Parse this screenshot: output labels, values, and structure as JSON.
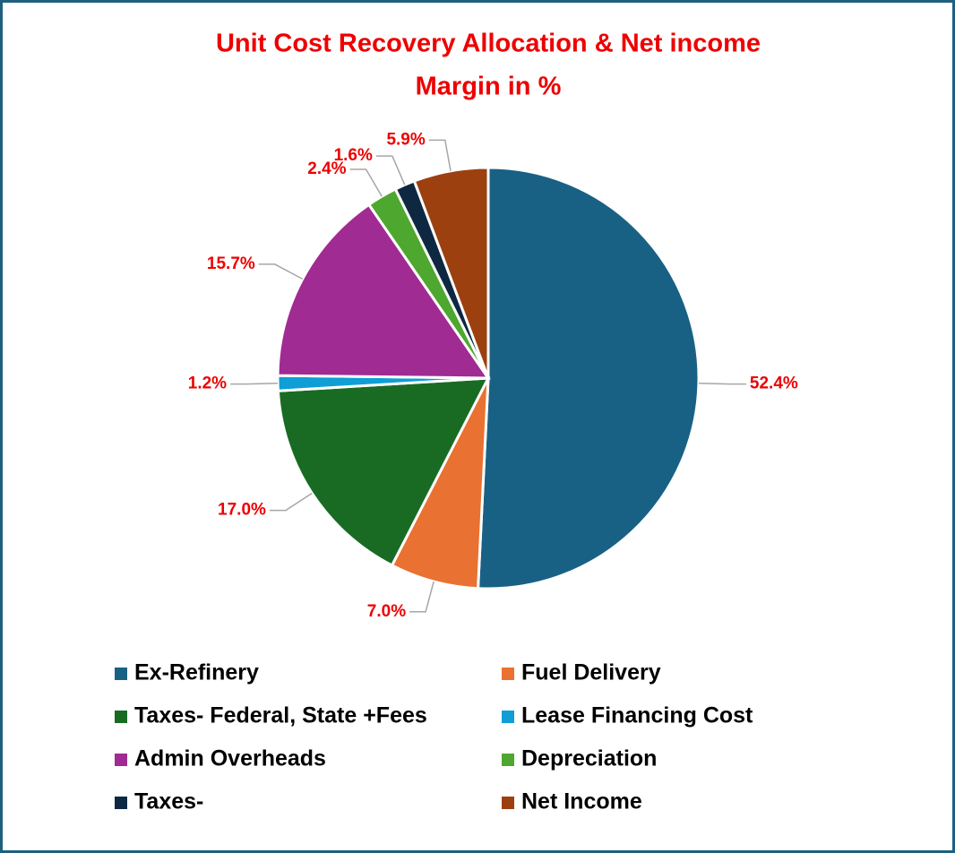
{
  "chart_data": {
    "type": "pie",
    "title": [
      "Unit Cost Recovery Allocation & Net income",
      "Margin in %"
    ],
    "categories": [
      "Ex-Refinery",
      "Fuel Delivery",
      "Taxes- Federal, State +Fees",
      "Lease Financing Cost",
      "Admin Overheads",
      "Depreciation",
      "Taxes-",
      "Net Income"
    ],
    "values": [
      52.4,
      7.0,
      17.0,
      1.2,
      15.7,
      2.4,
      1.6,
      5.9
    ],
    "value_labels": [
      "52.4%",
      "7.0%",
      "17.0%",
      "1.2%",
      "15.7%",
      "2.4%",
      "1.6%",
      "5.9%"
    ],
    "colors": [
      "#196184",
      "#e97132",
      "#196b24",
      "#0f9ed5",
      "#a02b93",
      "#4ea72e",
      "#0e2841",
      "#9c4010"
    ],
    "legend": "bottom"
  }
}
